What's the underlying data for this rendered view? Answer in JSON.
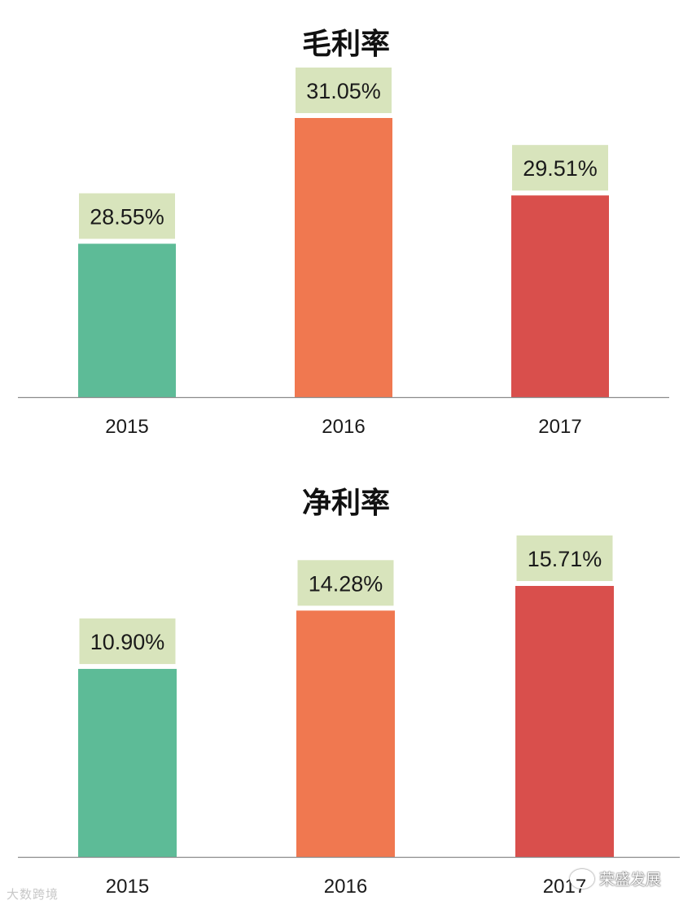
{
  "chart_data": [
    {
      "type": "bar",
      "title": "毛利率",
      "categories": [
        "2015",
        "2016",
        "2017"
      ],
      "values": [
        28.55,
        31.05,
        29.51
      ],
      "data_labels": [
        "28.55%",
        "31.05%",
        "29.51%"
      ],
      "colors": [
        "#5dbb97",
        "#f07850",
        "#d94f4c"
      ],
      "label_bg": "#d8e4bc",
      "ylim": [
        25.5,
        31.05
      ],
      "grid": false,
      "legend": "none"
    },
    {
      "type": "bar",
      "title": "净利率",
      "categories": [
        "2015",
        "2016",
        "2017"
      ],
      "values": [
        10.9,
        14.28,
        15.71
      ],
      "data_labels": [
        "10.90%",
        "14.28%",
        "15.71%"
      ],
      "colors": [
        "#5dbb97",
        "#f07850",
        "#d94f4c"
      ],
      "label_bg": "#d8e4bc",
      "ylim": [
        0,
        15.71
      ],
      "grid": false,
      "legend": "none"
    }
  ],
  "watermarks": {
    "left": "大数跨境",
    "right": "荣盛发展"
  }
}
